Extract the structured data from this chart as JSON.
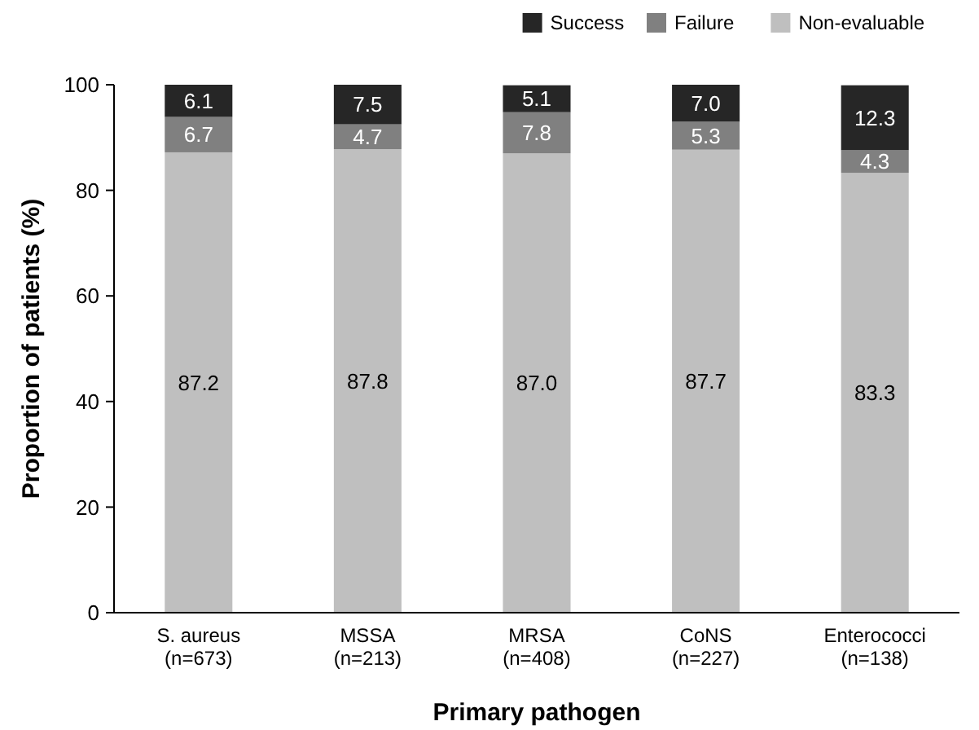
{
  "chart_data": {
    "type": "bar",
    "stacked": true,
    "xlabel": "Primary pathogen",
    "ylabel": "Proportion of patients (%)",
    "categories": [
      "S. aureus\n(n=673)",
      "MSSA\n(n=213)",
      "MRSA\n(n=408)",
      "CoNS\n(n=227)",
      "Enterococci\n(n=138)"
    ],
    "series": [
      {
        "name": "Non-evaluable",
        "color": "#bfbfbf",
        "values": [
          87.2,
          87.8,
          87.0,
          87.7,
          83.3
        ],
        "value_labels": [
          "87.2",
          "87.8",
          "87.0",
          "87.7",
          "83.3"
        ]
      },
      {
        "name": "Failure",
        "color": "#808080",
        "values": [
          6.7,
          4.7,
          7.8,
          5.3,
          4.3
        ]
      },
      {
        "name": "Success",
        "color": "#262626",
        "values": [
          6.1,
          7.5,
          5.1,
          7.0,
          12.3
        ],
        "value_labels": [
          "6.1",
          "7.5",
          "5.1",
          "7.0",
          "12.3"
        ]
      }
    ],
    "ylim": [
      0,
      100
    ],
    "yticks": [
      0,
      20,
      40,
      60,
      80,
      100
    ],
    "data_labels": true,
    "legend": "top right",
    "grid": false
  }
}
